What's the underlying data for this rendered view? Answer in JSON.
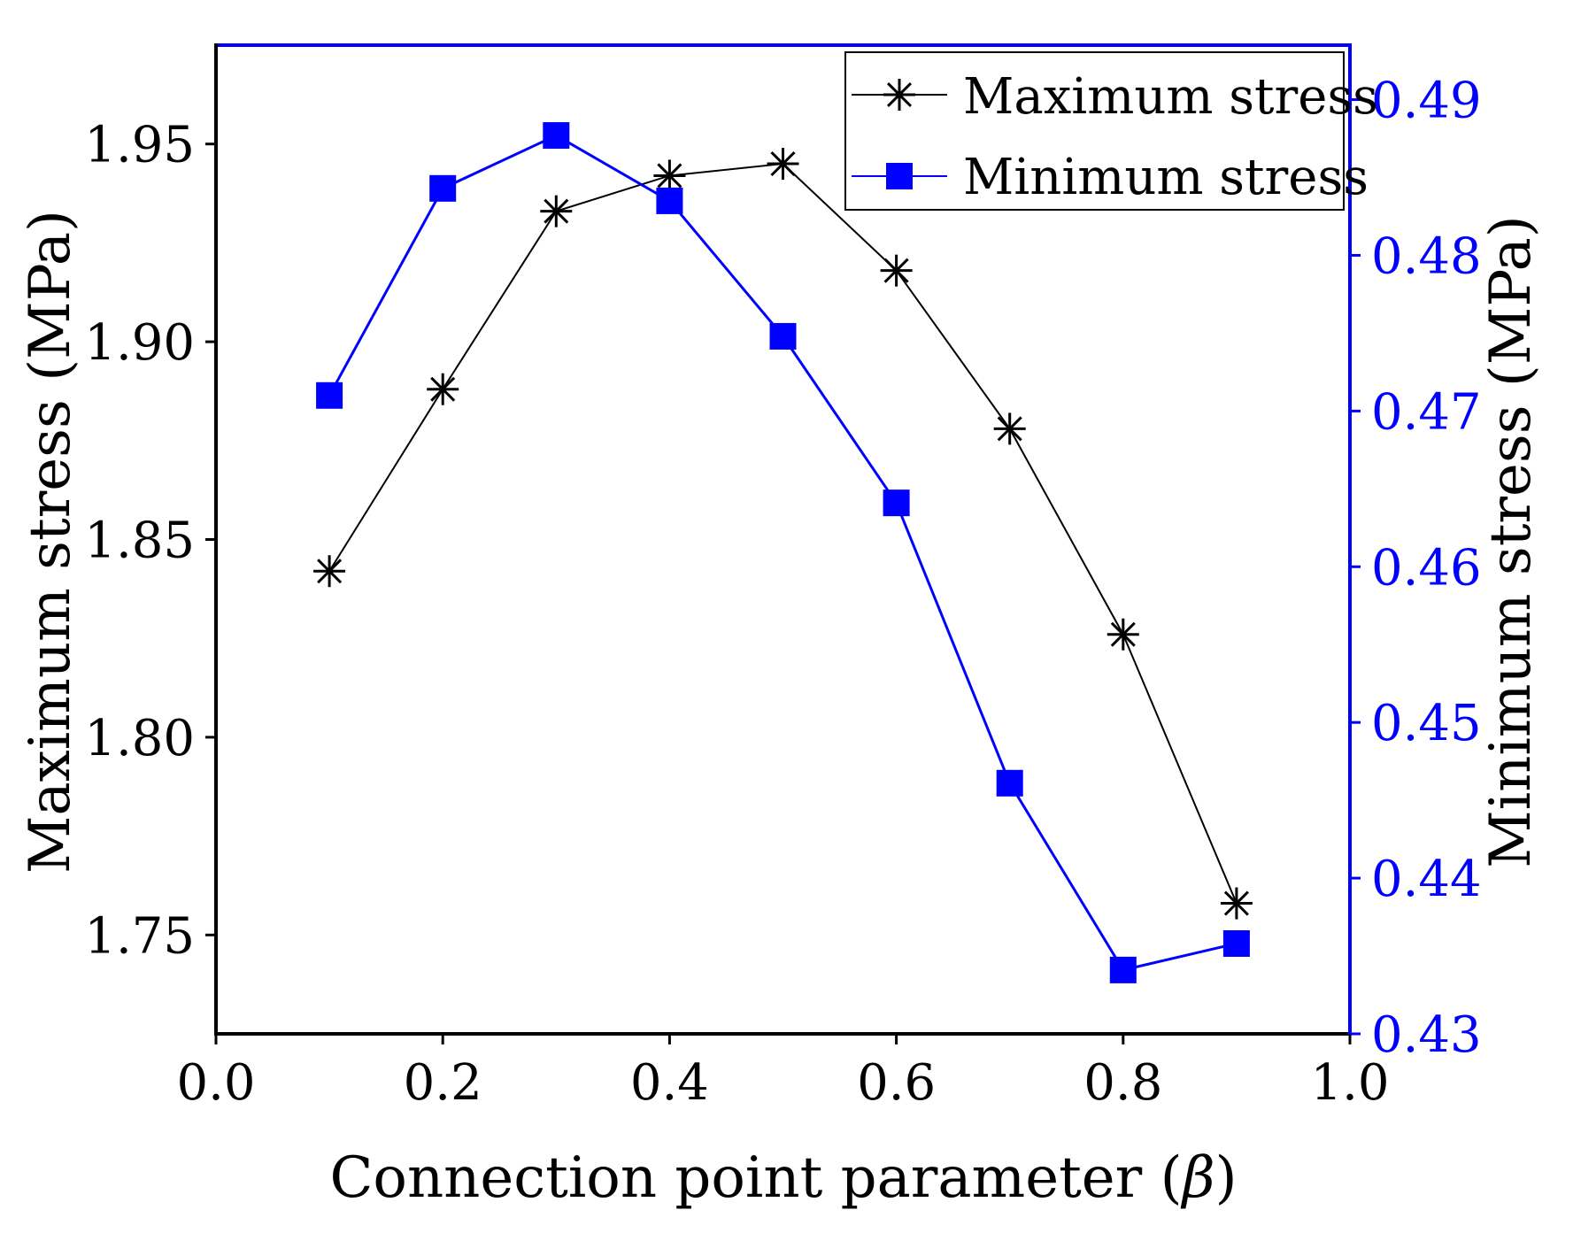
{
  "colors": {
    "max_series": "#000000",
    "min_series": "#0000ff",
    "axis_left": "#000000",
    "axis_right": "#0000ff",
    "background": "#ffffff"
  },
  "chart_data": {
    "type": "line",
    "title": "",
    "xlabel": "Connection point parameter (β)",
    "xlabel_main": "Connection point parameter (",
    "xlabel_symbol": "β",
    "xlabel_close": ")",
    "ylabel_left": "Maximum stress (MPa)",
    "ylabel_right": "Minimum stress (MPa)",
    "xlim": [
      0.0,
      1.0
    ],
    "ylim_left": [
      1.725,
      1.975
    ],
    "ylim_right": [
      0.43,
      0.4935
    ],
    "x_ticks": [
      "0.0",
      "0.2",
      "0.4",
      "0.6",
      "0.8",
      "1.0"
    ],
    "x_tick_values": [
      0.0,
      0.2,
      0.4,
      0.6,
      0.8,
      1.0
    ],
    "y_left_ticks": [
      "1.75",
      "1.80",
      "1.85",
      "1.90",
      "1.95"
    ],
    "y_left_tick_values": [
      1.75,
      1.8,
      1.85,
      1.9,
      1.95
    ],
    "y_right_ticks": [
      "0.43",
      "0.44",
      "0.45",
      "0.46",
      "0.47",
      "0.48",
      "0.49"
    ],
    "y_right_tick_values": [
      0.43,
      0.44,
      0.45,
      0.46,
      0.47,
      0.48,
      0.49
    ],
    "x": [
      0.1,
      0.2,
      0.3,
      0.4,
      0.5,
      0.6,
      0.7,
      0.8,
      0.9
    ],
    "series": [
      {
        "name": "Maximum stress",
        "axis": "left",
        "marker": "asterisk",
        "color": "#000000",
        "values": [
          1.842,
          1.888,
          1.933,
          1.942,
          1.945,
          1.918,
          1.878,
          1.826,
          1.758
        ]
      },
      {
        "name": "Minimum stress",
        "axis": "right",
        "marker": "square",
        "color": "#0000ff",
        "values": [
          0.471,
          0.4843,
          0.4877,
          0.4835,
          0.4748,
          0.4641,
          0.4461,
          0.4341,
          0.4358
        ]
      }
    ],
    "legend": {
      "position": "top-right",
      "entries": [
        "Maximum stress",
        "Minimum stress"
      ]
    },
    "grid": false
  }
}
